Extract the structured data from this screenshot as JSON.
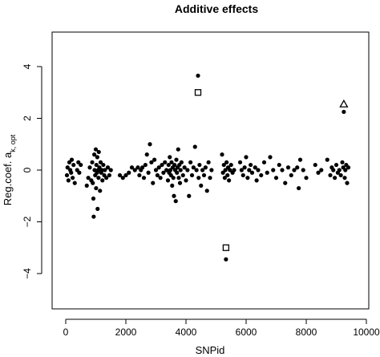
{
  "chart_data": {
    "type": "scatter",
    "title": "Additive effects",
    "xlabel": "SNPid",
    "ylabel_main": "Reg.coef. a",
    "ylabel_sub": "k, opt",
    "xlim": [
      -500,
      10000
    ],
    "ylim": [
      -5.4,
      5.4
    ],
    "x_ticks": [
      0,
      2000,
      4000,
      6000,
      8000,
      10000
    ],
    "y_ticks": [
      -4,
      -2,
      0,
      2,
      4
    ],
    "grid": false,
    "series": [
      {
        "marker": "filled-circle",
        "points": [
          [
            40,
            -0.2
          ],
          [
            60,
            0.1
          ],
          [
            90,
            -0.4
          ],
          [
            120,
            0.3
          ],
          [
            150,
            0.0
          ],
          [
            180,
            -0.1
          ],
          [
            200,
            0.4
          ],
          [
            230,
            -0.3
          ],
          [
            260,
            0.2
          ],
          [
            300,
            -0.5
          ],
          [
            380,
            0.0
          ],
          [
            420,
            0.3
          ],
          [
            450,
            -0.1
          ],
          [
            500,
            0.2
          ],
          [
            700,
            -0.6
          ],
          [
            750,
            -0.3
          ],
          [
            800,
            0.1
          ],
          [
            850,
            -0.4
          ],
          [
            880,
            0.3
          ],
          [
            900,
            -0.5
          ],
          [
            920,
            -1.1
          ],
          [
            930,
            -1.8
          ],
          [
            950,
            0.6
          ],
          [
            960,
            0.0
          ],
          [
            980,
            -0.2
          ],
          [
            1000,
            0.8
          ],
          [
            1010,
            -0.7
          ],
          [
            1020,
            0.2
          ],
          [
            1040,
            -0.1
          ],
          [
            1050,
            0.5
          ],
          [
            1060,
            -1.5
          ],
          [
            1080,
            0.0
          ],
          [
            1090,
            -0.3
          ],
          [
            1100,
            0.7
          ],
          [
            1120,
            0.1
          ],
          [
            1140,
            -0.8
          ],
          [
            1160,
            0.3
          ],
          [
            1180,
            -0.1
          ],
          [
            1200,
            0.0
          ],
          [
            1220,
            -0.4
          ],
          [
            1250,
            0.2
          ],
          [
            1280,
            -0.2
          ],
          [
            1300,
            0.0
          ],
          [
            1350,
            -0.3
          ],
          [
            1400,
            0.1
          ],
          [
            1450,
            -0.2
          ],
          [
            1500,
            0.0
          ],
          [
            1800,
            -0.2
          ],
          [
            1900,
            -0.3
          ],
          [
            2000,
            -0.2
          ],
          [
            2100,
            -0.1
          ],
          [
            2200,
            0.1
          ],
          [
            2300,
            0.0
          ],
          [
            2400,
            0.1
          ],
          [
            2450,
            -0.2
          ],
          [
            2500,
            0.0
          ],
          [
            2550,
            0.1
          ],
          [
            2600,
            -0.3
          ],
          [
            2650,
            0.2
          ],
          [
            2700,
            0.6
          ],
          [
            2750,
            -0.1
          ],
          [
            2800,
            1.0
          ],
          [
            2850,
            0.3
          ],
          [
            2900,
            -0.5
          ],
          [
            2950,
            0.4
          ],
          [
            3000,
            0.0
          ],
          [
            3050,
            -0.2
          ],
          [
            3100,
            0.1
          ],
          [
            3150,
            -0.3
          ],
          [
            3200,
            0.2
          ],
          [
            3250,
            -0.1
          ],
          [
            3300,
            0.3
          ],
          [
            3350,
            0.0
          ],
          [
            3400,
            -0.4
          ],
          [
            3420,
            0.2
          ],
          [
            3440,
            -0.1
          ],
          [
            3460,
            0.5
          ],
          [
            3480,
            0.0
          ],
          [
            3500,
            -0.2
          ],
          [
            3520,
            0.3
          ],
          [
            3540,
            -0.6
          ],
          [
            3560,
            0.1
          ],
          [
            3580,
            -0.3
          ],
          [
            3600,
            -1.0
          ],
          [
            3620,
            0.2
          ],
          [
            3640,
            0.0
          ],
          [
            3660,
            -1.2
          ],
          [
            3680,
            0.4
          ],
          [
            3700,
            -0.1
          ],
          [
            3720,
            0.1
          ],
          [
            3740,
            0.8
          ],
          [
            3760,
            -0.3
          ],
          [
            3780,
            0.2
          ],
          [
            3800,
            -0.5
          ],
          [
            3820,
            0.0
          ],
          [
            3850,
            0.3
          ],
          [
            3900,
            -0.2
          ],
          [
            3950,
            0.1
          ],
          [
            4000,
            -0.4
          ],
          [
            4050,
            0.0
          ],
          [
            4100,
            -1.0
          ],
          [
            4150,
            0.3
          ],
          [
            4200,
            -0.2
          ],
          [
            4250,
            0.1
          ],
          [
            4300,
            0.9
          ],
          [
            4350,
            0.0
          ],
          [
            4400,
            3.65
          ],
          [
            4420,
            -0.3
          ],
          [
            4450,
            0.2
          ],
          [
            4500,
            -0.6
          ],
          [
            4550,
            0.0
          ],
          [
            4600,
            -0.2
          ],
          [
            4650,
            0.1
          ],
          [
            4700,
            -0.8
          ],
          [
            4750,
            0.3
          ],
          [
            4800,
            -0.3
          ],
          [
            4850,
            0.0
          ],
          [
            5200,
            0.6
          ],
          [
            5230,
            -0.1
          ],
          [
            5260,
            0.2
          ],
          [
            5290,
            -0.3
          ],
          [
            5310,
            0.0
          ],
          [
            5330,
            -3.45
          ],
          [
            5350,
            0.3
          ],
          [
            5380,
            -0.2
          ],
          [
            5400,
            0.1
          ],
          [
            5430,
            -0.4
          ],
          [
            5460,
            0.0
          ],
          [
            5500,
            0.2
          ],
          [
            5550,
            -0.1
          ],
          [
            5600,
            0.0
          ],
          [
            5800,
            0.3
          ],
          [
            5850,
            0.0
          ],
          [
            5900,
            -0.2
          ],
          [
            5950,
            0.1
          ],
          [
            6000,
            0.5
          ],
          [
            6050,
            -0.3
          ],
          [
            6100,
            0.0
          ],
          [
            6150,
            0.2
          ],
          [
            6200,
            -0.1
          ],
          [
            6300,
            0.1
          ],
          [
            6350,
            -0.4
          ],
          [
            6400,
            0.0
          ],
          [
            6500,
            -0.2
          ],
          [
            6600,
            0.3
          ],
          [
            6700,
            -0.1
          ],
          [
            6800,
            0.5
          ],
          [
            6900,
            0.0
          ],
          [
            7000,
            -0.3
          ],
          [
            7100,
            0.2
          ],
          [
            7200,
            0.0
          ],
          [
            7300,
            -0.5
          ],
          [
            7400,
            0.1
          ],
          [
            7500,
            -0.2
          ],
          [
            7600,
            0.0
          ],
          [
            7700,
            0.1
          ],
          [
            7750,
            -0.7
          ],
          [
            7800,
            0.4
          ],
          [
            7900,
            0.0
          ],
          [
            8000,
            -0.3
          ],
          [
            8300,
            0.2
          ],
          [
            8400,
            -0.1
          ],
          [
            8500,
            0.0
          ],
          [
            8700,
            0.4
          ],
          [
            8800,
            -0.2
          ],
          [
            8850,
            0.1
          ],
          [
            8900,
            0.0
          ],
          [
            8950,
            -0.3
          ],
          [
            9000,
            0.2
          ],
          [
            9050,
            -0.1
          ],
          [
            9100,
            0.0
          ],
          [
            9150,
            -0.2
          ],
          [
            9200,
            0.3
          ],
          [
            9230,
            0.1
          ],
          [
            9250,
            2.25
          ],
          [
            9280,
            -0.3
          ],
          [
            9300,
            0.0
          ],
          [
            9330,
            0.2
          ],
          [
            9360,
            -0.5
          ],
          [
            9400,
            0.1
          ]
        ]
      },
      {
        "marker": "open-square",
        "points": [
          [
            4400,
            3.0
          ],
          [
            5330,
            -3.0
          ]
        ]
      },
      {
        "marker": "open-triangle",
        "points": [
          [
            9250,
            2.55
          ]
        ]
      }
    ]
  }
}
